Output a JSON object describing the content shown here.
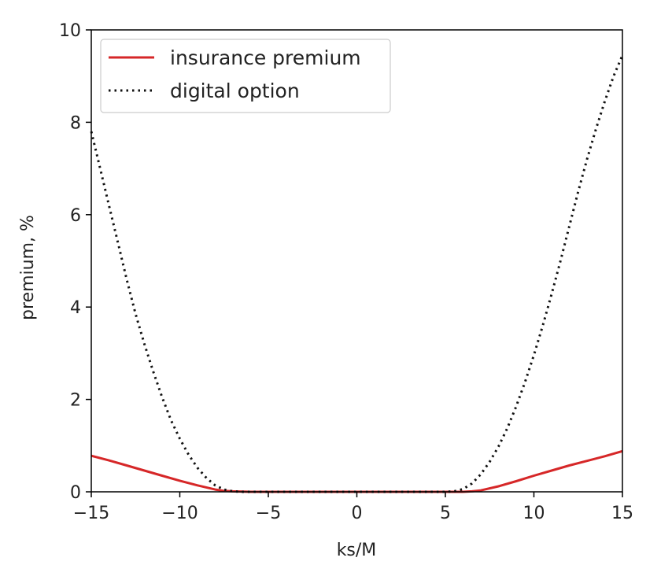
{
  "chart_data": {
    "type": "line",
    "title": "",
    "xlabel": "ks/M",
    "ylabel": "premium, %",
    "xlim": [
      -15,
      15
    ],
    "ylim": [
      0,
      10
    ],
    "xticks": [
      -15,
      -10,
      -5,
      0,
      5,
      10,
      15
    ],
    "xtick_labels": [
      "−15",
      "−10",
      "−5",
      "0",
      "5",
      "10",
      "15"
    ],
    "yticks": [
      0,
      2,
      4,
      6,
      8,
      10
    ],
    "ytick_labels": [
      "0",
      "2",
      "4",
      "6",
      "8",
      "10"
    ],
    "grid": false,
    "legend_position": "top-left",
    "series": [
      {
        "name": "insurance premium",
        "style": "solid",
        "color": "#d62728",
        "x": [
          -15,
          -14,
          -13,
          -12,
          -11,
          -10,
          -9,
          -8,
          -7.5,
          -7,
          -6,
          -5,
          -4,
          -3,
          -2,
          -1,
          0,
          1,
          2,
          3,
          4,
          5,
          6,
          6.5,
          7,
          8,
          9,
          10,
          11,
          12,
          13,
          14,
          15
        ],
        "y": [
          0.78,
          0.68,
          0.57,
          0.46,
          0.35,
          0.24,
          0.14,
          0.05,
          0.02,
          0.01,
          0.0,
          0.0,
          0.0,
          0.0,
          0.0,
          0.0,
          0.0,
          0.0,
          0.0,
          0.0,
          0.0,
          0.0,
          0.0,
          0.01,
          0.03,
          0.12,
          0.23,
          0.35,
          0.46,
          0.57,
          0.67,
          0.77,
          0.88
        ]
      },
      {
        "name": "digital option",
        "style": "dotted",
        "color": "#111111",
        "x": [
          -15,
          -14.5,
          -14,
          -13.5,
          -13,
          -12.5,
          -12,
          -11.5,
          -11,
          -10.5,
          -10,
          -9.5,
          -9,
          -8.5,
          -8,
          -7.5,
          -7,
          -6.5,
          -6,
          -5,
          -4,
          -3,
          -2,
          -1,
          0,
          1,
          2,
          3,
          4,
          5,
          5.5,
          6,
          6.5,
          7,
          7.5,
          8,
          8.5,
          9,
          9.5,
          10,
          10.5,
          11,
          11.5,
          12,
          12.5,
          13,
          13.5,
          14,
          14.5,
          15
        ],
        "y": [
          7.8,
          7.0,
          6.2,
          5.4,
          4.6,
          3.85,
          3.2,
          2.6,
          2.05,
          1.55,
          1.15,
          0.8,
          0.52,
          0.3,
          0.14,
          0.05,
          0.01,
          0.0,
          0.0,
          0.0,
          0.0,
          0.0,
          0.0,
          0.0,
          0.0,
          0.0,
          0.0,
          0.0,
          0.0,
          0.0,
          0.01,
          0.06,
          0.18,
          0.38,
          0.65,
          0.98,
          1.38,
          1.85,
          2.38,
          2.96,
          3.6,
          4.28,
          5.0,
          5.75,
          6.5,
          7.2,
          7.85,
          8.45,
          9.0,
          9.45
        ]
      }
    ]
  }
}
